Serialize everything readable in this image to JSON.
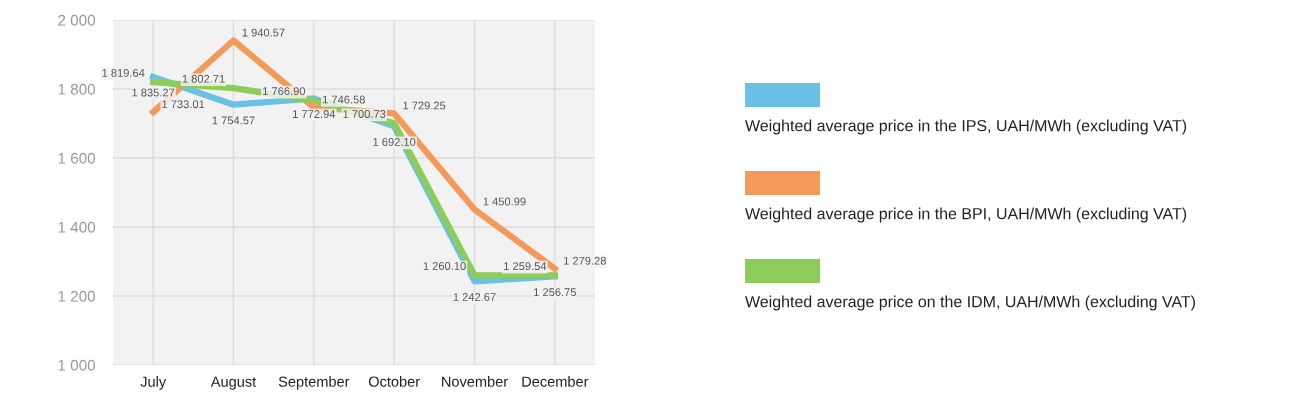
{
  "chart_data": {
    "type": "line",
    "categories": [
      "July",
      "August",
      "September",
      "October",
      "November",
      "December"
    ],
    "series": [
      {
        "name": "Weighted average price in the IPS, UAH/MWh (excluding VAT)",
        "color": "#6cbfe6",
        "values": [
          1835.27,
          1754.57,
          1772.94,
          1692.1,
          1242.67,
          1256.75
        ],
        "value_labels": [
          "1 835.27",
          "1 754.57",
          "1 772.94",
          "1 692.10",
          "1 242.67",
          "1 256.75"
        ]
      },
      {
        "name": "Weighted average price in the BPI, UAH/MWh (excluding VAT)",
        "color": "#f39a5a",
        "values": [
          1733.01,
          1940.57,
          1746.58,
          1729.25,
          1450.99,
          1279.28
        ],
        "value_labels": [
          "1 733.01",
          "1 940.57",
          "1 746.58",
          "1 729.25",
          "1 450.99",
          "1 279.28"
        ]
      },
      {
        "name": "Weighted average price on the IDM, UAH/MWh (excluding VAT)",
        "color": "#8dcb5a",
        "values": [
          1819.64,
          1802.71,
          1766.9,
          1700.73,
          1260.1,
          1259.54
        ],
        "value_labels": [
          "1 819.64",
          "1 802.71",
          "1 766.90",
          "1 700.73",
          "1 260.10",
          "1 259.54"
        ]
      }
    ],
    "ylim": [
      1000,
      2000
    ],
    "yticks": [
      {
        "value": 1000,
        "label": "1 000"
      },
      {
        "value": 1200,
        "label": "1 200"
      },
      {
        "value": 1400,
        "label": "1 400"
      },
      {
        "value": 1600,
        "label": "1 600"
      },
      {
        "value": 1800,
        "label": "1 800"
      },
      {
        "value": 2000,
        "label": "2 000"
      }
    ],
    "grid": true,
    "legend": "right",
    "marker": "none",
    "line_style": "solid"
  }
}
